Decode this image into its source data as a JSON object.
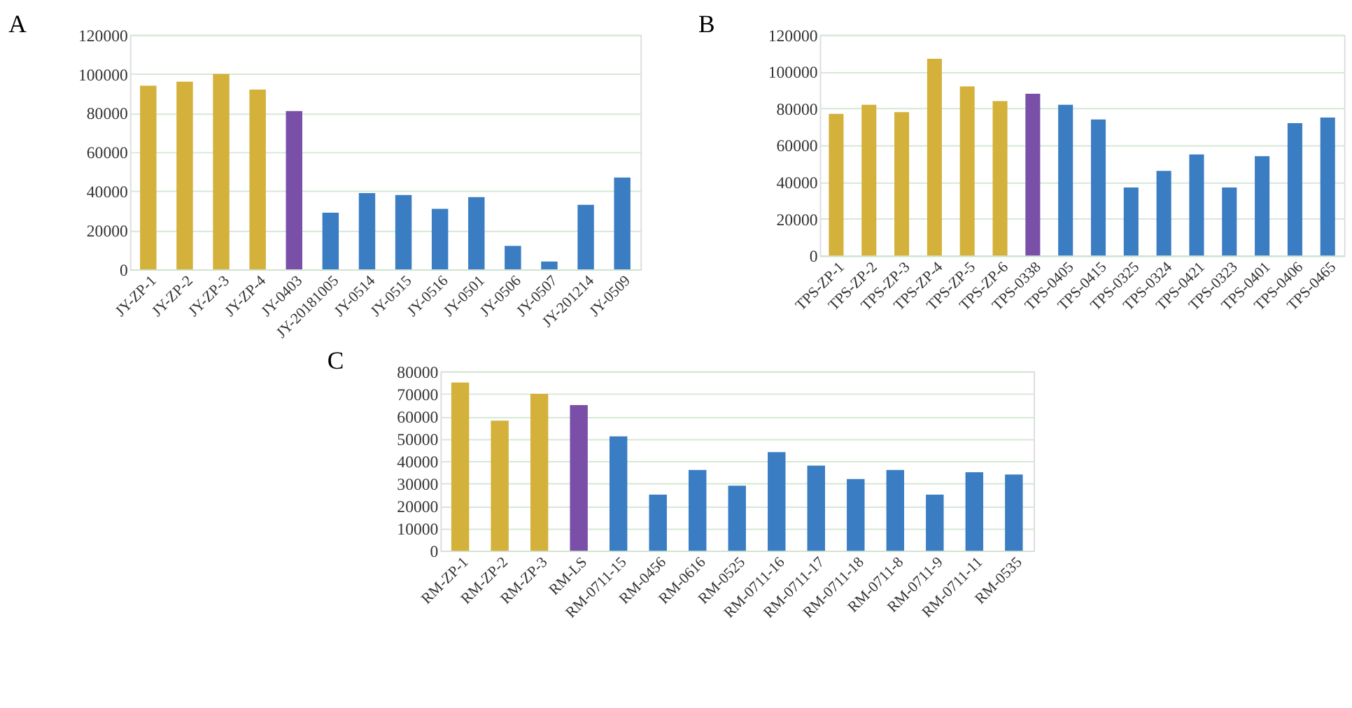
{
  "chart_data": [
    {
      "type": "bar",
      "title": "A",
      "categories": [
        "JY-ZP-1",
        "JY-ZP-2",
        "JY-ZP-3",
        "JY-ZP-4",
        "JY-0403",
        "JY-20181005",
        "JY-0514",
        "JY-0515",
        "JY-0516",
        "JY-0501",
        "JY-0506",
        "JY-0507",
        "JY-201214",
        "JY-0509"
      ],
      "values": [
        94000,
        96000,
        100000,
        92000,
        81000,
        29000,
        39000,
        38000,
        31000,
        37000,
        12000,
        4000,
        33000,
        47000
      ],
      "colors": [
        "#d4b13a",
        "#d4b13a",
        "#d4b13a",
        "#d4b13a",
        "#7a4fa8",
        "#3a7dc2",
        "#3a7dc2",
        "#3a7dc2",
        "#3a7dc2",
        "#3a7dc2",
        "#3a7dc2",
        "#3a7dc2",
        "#3a7dc2",
        "#3a7dc2"
      ],
      "ylim": [
        0,
        120000
      ],
      "yticks": [
        0,
        20000,
        40000,
        60000,
        80000,
        100000,
        120000
      ],
      "grid": "y"
    },
    {
      "type": "bar",
      "title": "B",
      "categories": [
        "TPS-ZP-1",
        "TPS-ZP-2",
        "TPS-ZP-3",
        "TPS-ZP-4",
        "TPS-ZP-5",
        "TPS-ZP-6",
        "TPS-0338",
        "TPS-0405",
        "TPS-0415",
        "TPS-0325",
        "TPS-0324",
        "TPS-0421",
        "TPS-0323",
        "TPS-0401",
        "TPS-0406",
        "TPS-0465"
      ],
      "values": [
        77000,
        82000,
        78000,
        107000,
        92000,
        84000,
        88000,
        82000,
        74000,
        37000,
        46000,
        55000,
        37000,
        54000,
        72000,
        75000
      ],
      "colors": [
        "#d4b13a",
        "#d4b13a",
        "#d4b13a",
        "#d4b13a",
        "#d4b13a",
        "#d4b13a",
        "#7a4fa8",
        "#3a7dc2",
        "#3a7dc2",
        "#3a7dc2",
        "#3a7dc2",
        "#3a7dc2",
        "#3a7dc2",
        "#3a7dc2",
        "#3a7dc2",
        "#3a7dc2"
      ],
      "ylim": [
        0,
        120000
      ],
      "yticks": [
        0,
        20000,
        40000,
        60000,
        80000,
        100000,
        120000
      ],
      "grid": "y"
    },
    {
      "type": "bar",
      "title": "C",
      "categories": [
        "RM-ZP-1",
        "RM-ZP-2",
        "RM-ZP-3",
        "RM-LS",
        "RM-0711-15",
        "RM-0456",
        "RM-0616",
        "RM-0525",
        "RM-0711-16",
        "RM-0711-17",
        "RM-0711-18",
        "RM-0711-8",
        "RM-0711-9",
        "RM-0711-11",
        "RM-0535"
      ],
      "values": [
        75000,
        58000,
        70000,
        65000,
        51000,
        25000,
        36000,
        29000,
        44000,
        38000,
        32000,
        36000,
        25000,
        35000,
        34000
      ],
      "colors": [
        "#d4b13a",
        "#d4b13a",
        "#d4b13a",
        "#7a4fa8",
        "#3a7dc2",
        "#3a7dc2",
        "#3a7dc2",
        "#3a7dc2",
        "#3a7dc2",
        "#3a7dc2",
        "#3a7dc2",
        "#3a7dc2",
        "#3a7dc2",
        "#3a7dc2",
        "#3a7dc2"
      ],
      "ylim": [
        0,
        80000
      ],
      "yticks": [
        0,
        10000,
        20000,
        30000,
        40000,
        50000,
        60000,
        70000,
        80000
      ],
      "grid": "y"
    }
  ]
}
